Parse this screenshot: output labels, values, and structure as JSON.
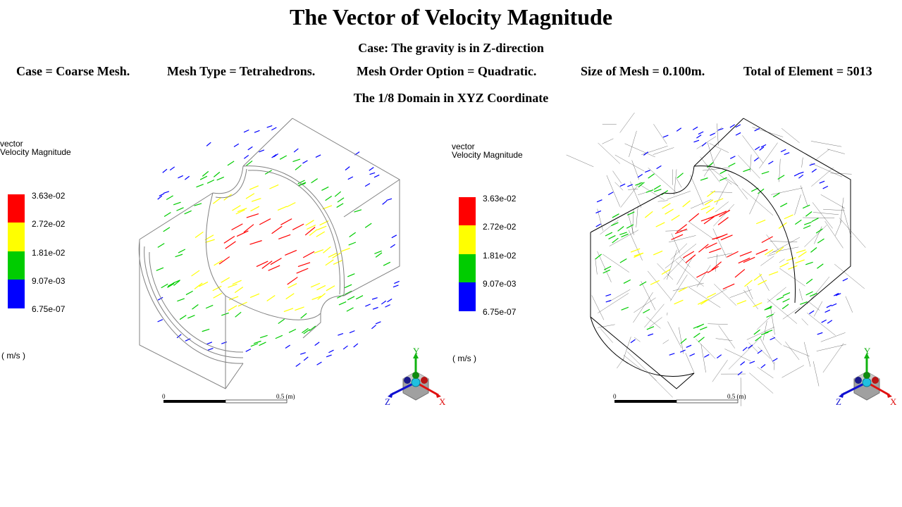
{
  "title": "The Vector of Velocity Magnitude",
  "case_line": "Case: The gravity is in  Z-direction",
  "info": {
    "case": "Case = Coarse Mesh.",
    "mesh_type": "Mesh Type = Tetrahedrons.",
    "mesh_order": "Mesh Order Option  = Quadratic.",
    "mesh_size": "Size of Mesh = 0.100m.",
    "elements": "Total of Element = 5013"
  },
  "domain_line": "The 1/8 Domain  in XYZ  Coordinate",
  "legend": {
    "line1": "vector",
    "line2": "Velocity Magnitude",
    "ticks": [
      "3.63e-02",
      "2.72e-02",
      "1.81e-02",
      "9.07e-03",
      "6.75e-07"
    ],
    "colors": [
      "#ff0000",
      "#ffff00",
      "#00cc00",
      "#0000ff"
    ],
    "unit": "( m/s )"
  },
  "scale": {
    "start": "0",
    "end": "0.5 (m)"
  },
  "axes": {
    "x": "X",
    "y": "Y",
    "z": "Z"
  },
  "colors": {
    "outline": "#808080",
    "mesh": "#000000"
  }
}
